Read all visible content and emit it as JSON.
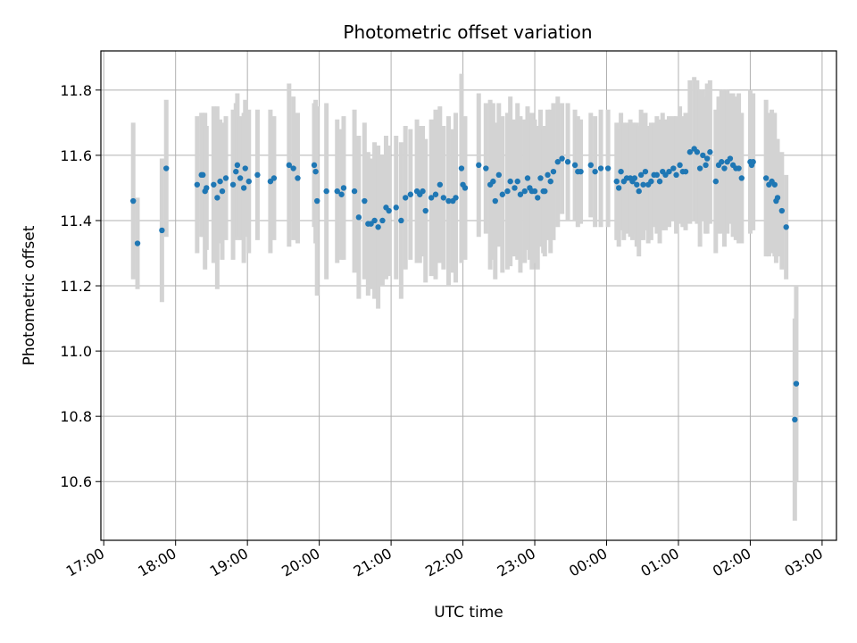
{
  "chart_data": {
    "type": "scatter",
    "title": "Photometric offset variation",
    "xlabel": "UTC time",
    "ylabel": "Photometric offset",
    "grid": true,
    "x_unit": "hours since 17:00 UTC",
    "xlim": [
      -0.04,
      10.2
    ],
    "ylim": [
      10.42,
      11.92
    ],
    "x_tick_values": [
      0,
      1,
      2,
      3,
      4,
      5,
      6,
      7,
      8,
      9,
      10
    ],
    "x_tick_labels": [
      "17:00",
      "18:00",
      "19:00",
      "20:00",
      "21:00",
      "22:00",
      "23:00",
      "00:00",
      "01:00",
      "02:00",
      "03:00"
    ],
    "y_tick_values": [
      10.6,
      10.8,
      11.0,
      11.2,
      11.4,
      11.6,
      11.8
    ],
    "y_tick_labels": [
      "10.6",
      "10.8",
      "11.0",
      "11.2",
      "11.4",
      "11.6",
      "11.8"
    ],
    "colors": {
      "points": "#1f77b4",
      "errorbars": "#d3d3d3",
      "grid": "#b0b0b0"
    },
    "series": [
      {
        "name": "Photometric offset",
        "x": [
          0.41,
          0.47,
          0.81,
          0.87,
          1.3,
          1.36,
          1.38,
          1.41,
          1.43,
          1.53,
          1.58,
          1.62,
          1.65,
          1.7,
          1.8,
          1.84,
          1.86,
          1.9,
          1.95,
          1.97,
          2.02,
          2.14,
          2.32,
          2.37,
          2.58,
          2.64,
          2.7,
          2.93,
          2.95,
          2.97,
          3.1,
          3.25,
          3.31,
          3.34,
          3.49,
          3.55,
          3.63,
          3.68,
          3.72,
          3.77,
          3.82,
          3.88,
          3.93,
          3.97,
          4.07,
          4.14,
          4.2,
          4.27,
          4.36,
          4.4,
          4.44,
          4.48,
          4.56,
          4.62,
          4.68,
          4.73,
          4.8,
          4.86,
          4.9,
          4.98,
          5.0,
          5.03,
          5.22,
          5.32,
          5.38,
          5.42,
          5.45,
          5.5,
          5.55,
          5.62,
          5.66,
          5.72,
          5.76,
          5.8,
          5.86,
          5.9,
          5.93,
          5.96,
          6.0,
          6.04,
          6.08,
          6.12,
          6.14,
          6.18,
          6.22,
          6.26,
          6.32,
          6.38,
          6.46,
          6.56,
          6.6,
          6.64,
          6.78,
          6.84,
          6.92,
          7.02,
          7.14,
          7.17,
          7.2,
          7.24,
          7.28,
          7.33,
          7.36,
          7.39,
          7.42,
          7.45,
          7.48,
          7.51,
          7.54,
          7.58,
          7.62,
          7.66,
          7.7,
          7.74,
          7.78,
          7.82,
          7.87,
          7.93,
          7.97,
          8.02,
          8.06,
          8.1,
          8.16,
          8.22,
          8.26,
          8.3,
          8.34,
          8.38,
          8.4,
          8.44,
          8.52,
          8.56,
          8.6,
          8.64,
          8.68,
          8.72,
          8.76,
          8.8,
          8.84,
          8.88,
          9.0,
          9.02,
          9.04,
          9.22,
          9.26,
          9.3,
          9.34,
          9.36,
          9.38,
          9.44,
          9.5,
          9.62,
          9.64
        ],
        "y": [
          11.46,
          11.33,
          11.37,
          11.56,
          11.51,
          11.54,
          11.54,
          11.49,
          11.5,
          11.51,
          11.47,
          11.52,
          11.49,
          11.53,
          11.51,
          11.55,
          11.57,
          11.53,
          11.5,
          11.56,
          11.52,
          11.54,
          11.52,
          11.53,
          11.57,
          11.56,
          11.53,
          11.57,
          11.55,
          11.46,
          11.49,
          11.49,
          11.48,
          11.5,
          11.49,
          11.41,
          11.46,
          11.39,
          11.39,
          11.4,
          11.38,
          11.4,
          11.44,
          11.43,
          11.44,
          11.4,
          11.47,
          11.48,
          11.49,
          11.48,
          11.49,
          11.43,
          11.47,
          11.48,
          11.51,
          11.47,
          11.46,
          11.46,
          11.47,
          11.56,
          11.51,
          11.5,
          11.57,
          11.56,
          11.51,
          11.52,
          11.46,
          11.54,
          11.48,
          11.49,
          11.52,
          11.5,
          11.52,
          11.48,
          11.49,
          11.53,
          11.5,
          11.49,
          11.49,
          11.47,
          11.53,
          11.49,
          11.49,
          11.54,
          11.52,
          11.55,
          11.58,
          11.59,
          11.58,
          11.57,
          11.55,
          11.55,
          11.57,
          11.55,
          11.56,
          11.56,
          11.52,
          11.5,
          11.55,
          11.52,
          11.53,
          11.53,
          11.52,
          11.53,
          11.51,
          11.49,
          11.54,
          11.51,
          11.55,
          11.51,
          11.52,
          11.54,
          11.54,
          11.52,
          11.55,
          11.54,
          11.55,
          11.56,
          11.54,
          11.57,
          11.55,
          11.55,
          11.61,
          11.62,
          11.61,
          11.56,
          11.6,
          11.57,
          11.59,
          11.61,
          11.52,
          11.57,
          11.58,
          11.56,
          11.58,
          11.59,
          11.57,
          11.56,
          11.56,
          11.53,
          11.58,
          11.57,
          11.58,
          11.53,
          11.51,
          11.52,
          11.51,
          11.46,
          11.47,
          11.43,
          11.38,
          10.79,
          10.9
        ],
        "err": [
          0.24,
          0.14,
          0.22,
          0.21,
          0.21,
          0.19,
          0.19,
          0.24,
          0.19,
          0.24,
          0.28,
          0.19,
          0.21,
          0.19,
          0.23,
          0.21,
          0.22,
          0.19,
          0.23,
          0.21,
          0.22,
          0.2,
          0.22,
          0.19,
          0.25,
          0.22,
          0.2,
          0.19,
          0.22,
          0.29,
          0.27,
          0.22,
          0.2,
          0.22,
          0.25,
          0.25,
          0.24,
          0.22,
          0.2,
          0.24,
          0.25,
          0.2,
          0.22,
          0.2,
          0.22,
          0.24,
          0.22,
          0.2,
          0.22,
          0.21,
          0.2,
          0.22,
          0.24,
          0.26,
          0.24,
          0.22,
          0.26,
          0.22,
          0.26,
          0.29,
          0.2,
          0.22,
          0.22,
          0.2,
          0.26,
          0.24,
          0.24,
          0.22,
          0.24,
          0.24,
          0.26,
          0.21,
          0.24,
          0.24,
          0.22,
          0.22,
          0.22,
          0.24,
          0.22,
          0.22,
          0.21,
          0.19,
          0.2,
          0.2,
          0.22,
          0.21,
          0.2,
          0.17,
          0.18,
          0.17,
          0.17,
          0.16,
          0.16,
          0.17,
          0.18,
          0.18,
          0.18,
          0.18,
          0.18,
          0.18,
          0.17,
          0.18,
          0.18,
          0.17,
          0.19,
          0.2,
          0.2,
          0.17,
          0.18,
          0.18,
          0.18,
          0.16,
          0.18,
          0.19,
          0.18,
          0.17,
          0.17,
          0.16,
          0.18,
          0.18,
          0.17,
          0.18,
          0.22,
          0.22,
          0.22,
          0.24,
          0.2,
          0.21,
          0.23,
          0.22,
          0.22,
          0.21,
          0.22,
          0.24,
          0.22,
          0.2,
          0.22,
          0.22,
          0.23,
          0.2,
          0.22,
          0.2,
          0.21,
          0.24,
          0.22,
          0.22,
          0.22,
          0.19,
          0.18,
          0.18,
          0.16,
          0.31,
          0.3
        ]
      }
    ]
  }
}
